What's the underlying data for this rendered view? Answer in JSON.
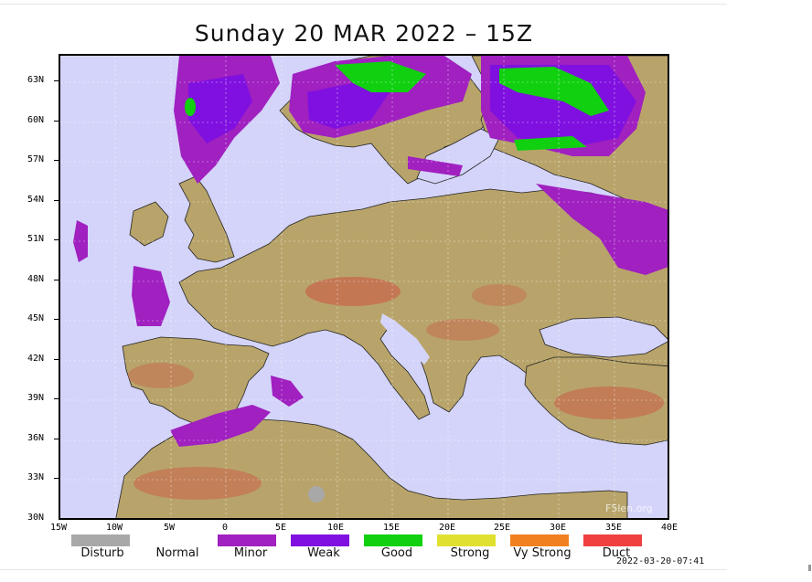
{
  "title": "Sunday 20 MAR 2022 – 15Z",
  "timestamp": "2022-03-20-07:41",
  "watermark": "F5len.org",
  "lat_labels": [
    "63N",
    "60N",
    "57N",
    "54N",
    "51N",
    "48N",
    "45N",
    "42N",
    "39N",
    "36N",
    "33N",
    "30N"
  ],
  "lon_labels": [
    "15W",
    "10W",
    "5W",
    "0",
    "5E",
    "10E",
    "15E",
    "20E",
    "25E",
    "30E",
    "35E",
    "40E"
  ],
  "legend": [
    {
      "label": "Disturb",
      "color": "#a8a8a8"
    },
    {
      "label": "Normal",
      "color": ""
    },
    {
      "label": "Minor",
      "color": "#a020c0"
    },
    {
      "label": "Weak",
      "color": "#8010e0"
    },
    {
      "label": "Good",
      "color": "#10d010"
    },
    {
      "label": "Strong",
      "color": "#e0e030"
    },
    {
      "label": "Vy Strong",
      "color": "#f08020"
    },
    {
      "label": "Duct",
      "color": "#f04040"
    }
  ],
  "colors": {
    "sea": "#d4d4fa",
    "land": "#b8a46a",
    "highland": "#c8684c",
    "minor": "#a020c0",
    "weak": "#8010e0",
    "good": "#10d010"
  }
}
